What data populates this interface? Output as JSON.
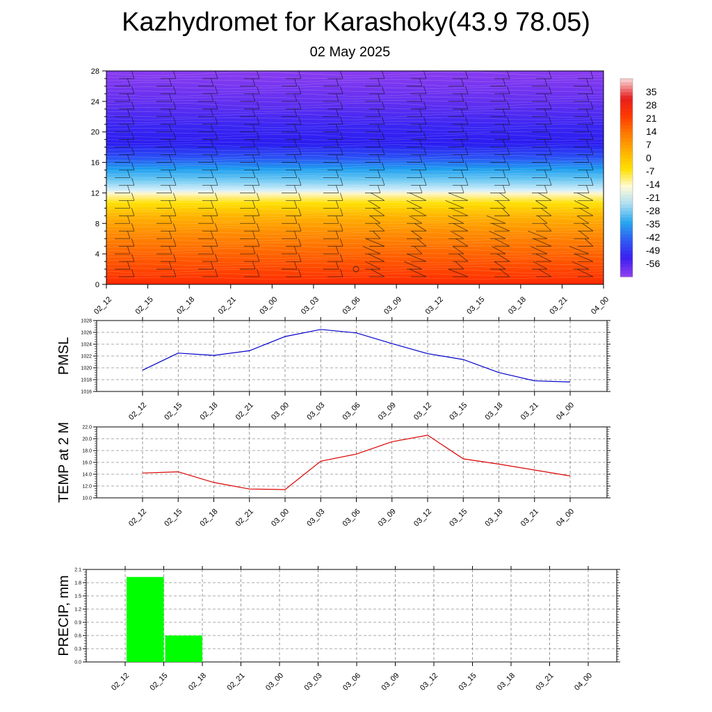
{
  "title": "Kazhydromet for Karashoky(43.9 78.05)",
  "subtitle": "02 May 2025",
  "chart_data": [
    {
      "type": "heatmap",
      "description_visible": "temperature cross-section with wind barbs",
      "x_categories": [
        "02_12",
        "02_15",
        "02_18",
        "02_21",
        "03_00",
        "03_03",
        "03_06",
        "03_09",
        "03_12",
        "03_15",
        "03_18",
        "03_21",
        "04_00"
      ],
      "y_ticks": [
        0,
        4,
        8,
        12,
        16,
        20,
        24,
        28
      ],
      "ylim": [
        0,
        28
      ],
      "colorbar_labels": [
        "35",
        "28",
        "21",
        "14",
        "7",
        "0",
        "-7",
        "-14",
        "-21",
        "-28",
        "-35",
        "-42",
        "-49",
        "-56"
      ],
      "colorbar_range": [
        -63,
        42
      ],
      "colorbar_colors": [
        "#8a3cf0",
        "#3b20f0",
        "#2f5cf4",
        "#27a7ef",
        "#a9ddf2",
        "#fffbd8",
        "#ffe000",
        "#ffb000",
        "#ff7a00",
        "#ff3a00",
        "#e61e1e",
        "#f8c8c8"
      ]
    },
    {
      "type": "line",
      "ylabel": "PMSL",
      "categories": [
        "02_12",
        "02_15",
        "02_18",
        "02_21",
        "03_00",
        "03_03",
        "03_06",
        "03_09",
        "03_12",
        "03_15",
        "03_18",
        "03_21",
        "04_00"
      ],
      "values": [
        1019.6,
        1022.5,
        1022.1,
        1022.9,
        1025.3,
        1026.5,
        1025.9,
        1024.1,
        1022.4,
        1021.4,
        1019.2,
        1017.8,
        1017.6
      ],
      "y_ticks": [
        "1016",
        "1018",
        "1020",
        "1022",
        "1024",
        "1026",
        "1028"
      ],
      "ylim": [
        1016,
        1028
      ],
      "color": "#0000cc"
    },
    {
      "type": "line",
      "ylabel": "TEMP at 2 M",
      "categories": [
        "02_12",
        "02_15",
        "02_18",
        "02_21",
        "03_00",
        "03_03",
        "03_06",
        "03_09",
        "03_12",
        "03_15",
        "03_18",
        "03_21",
        "04_00"
      ],
      "values": [
        14.2,
        14.4,
        12.6,
        11.5,
        11.4,
        16.2,
        17.4,
        19.5,
        20.6,
        16.6,
        15.7,
        14.7,
        13.7
      ],
      "y_ticks": [
        "10.0",
        "12.0",
        "14.0",
        "16.0",
        "18.0",
        "20.0",
        "22.0"
      ],
      "ylim": [
        10,
        22
      ],
      "color": "#dd0000"
    },
    {
      "type": "bar",
      "ylabel": "PRECIP, mm",
      "categories": [
        "02_12",
        "02_15",
        "02_18",
        "02_21",
        "03_00",
        "03_03",
        "03_06",
        "03_09",
        "03_12",
        "03_15",
        "03_18",
        "03_21",
        "04_00"
      ],
      "values": [
        0,
        1.93,
        0.6,
        0,
        0,
        0,
        0,
        0,
        0,
        0,
        0,
        0,
        0
      ],
      "y_ticks": [
        "0.0",
        "0.3",
        "0.6",
        "0.9",
        "1.2",
        "1.5",
        "1.8",
        "2.1"
      ],
      "ylim": [
        0,
        2.1
      ],
      "color": "#00ff00"
    }
  ]
}
